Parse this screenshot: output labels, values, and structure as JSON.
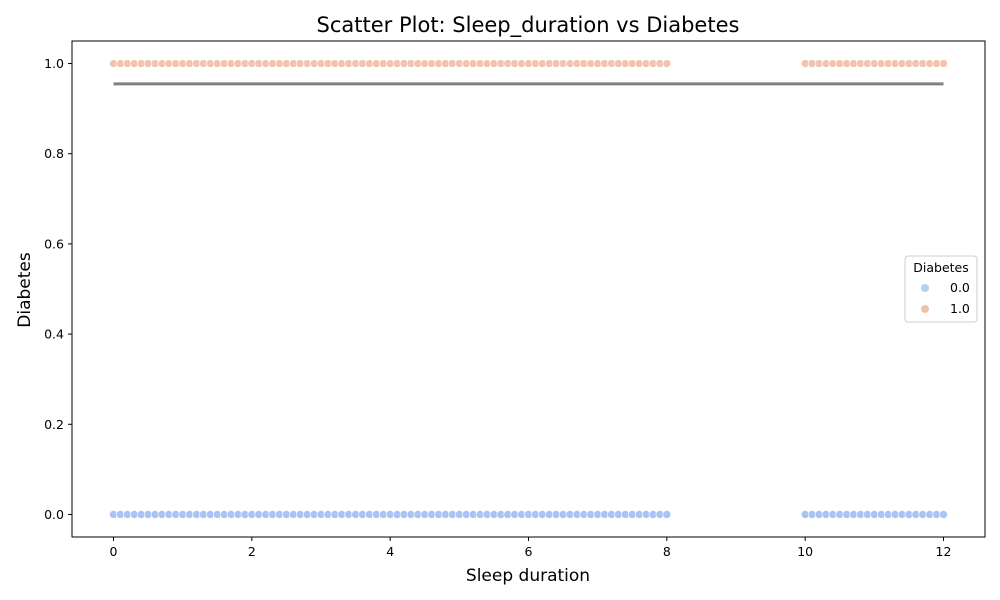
{
  "chart_data": {
    "type": "scatter",
    "title": "Scatter Plot: Sleep_duration vs Diabetes",
    "xlabel": "Sleep duration",
    "ylabel": "Diabetes",
    "xlim": [
      -0.6,
      12.6
    ],
    "ylim": [
      -0.05,
      1.05
    ],
    "x_ticks": [
      0,
      2,
      4,
      6,
      8,
      10,
      12
    ],
    "x_tick_labels": [
      "0",
      "2",
      "4",
      "6",
      "8",
      "10",
      "12"
    ],
    "y_ticks": [
      0.0,
      0.2,
      0.4,
      0.6,
      0.8,
      1.0
    ],
    "y_tick_labels": [
      "0.0",
      "0.2",
      "0.4",
      "0.6",
      "0.8",
      "1.0"
    ],
    "grid": false,
    "legend": {
      "title": "Diabetes",
      "placement": "center-right",
      "entries": [
        {
          "label": "0.0",
          "color": "#b3cdf3"
        },
        {
          "label": "1.0",
          "color": "#f0c1ac"
        }
      ]
    },
    "series": [
      {
        "name": "0.0",
        "y": 0.0,
        "color": "#a9c4f4",
        "x": [
          0.0,
          0.1,
          0.2,
          0.3,
          0.4,
          0.5,
          0.6,
          0.7,
          0.8,
          0.9,
          1.0,
          1.1,
          1.2,
          1.3,
          1.4,
          1.5,
          1.6,
          1.7,
          1.8,
          1.9,
          2.0,
          2.1,
          2.2,
          2.3,
          2.4,
          2.5,
          2.6,
          2.7,
          2.8,
          2.9,
          3.0,
          3.1,
          3.2,
          3.3,
          3.4,
          3.5,
          3.6,
          3.7,
          3.8,
          3.9,
          4.0,
          4.1,
          4.2,
          4.3,
          4.4,
          4.5,
          4.6,
          4.7,
          4.8,
          4.9,
          5.0,
          5.1,
          5.2,
          5.3,
          5.4,
          5.5,
          5.6,
          5.7,
          5.8,
          5.9,
          6.0,
          6.1,
          6.2,
          6.3,
          6.4,
          6.5,
          6.6,
          6.7,
          6.8,
          6.9,
          7.0,
          7.1,
          7.2,
          7.3,
          7.4,
          7.5,
          7.6,
          7.7,
          7.8,
          7.9,
          8.0,
          10.0,
          10.1,
          10.2,
          10.3,
          10.4,
          10.5,
          10.6,
          10.7,
          10.8,
          10.9,
          11.0,
          11.1,
          11.2,
          11.3,
          11.4,
          11.5,
          11.6,
          11.7,
          11.8,
          11.9,
          12.0
        ]
      },
      {
        "name": "1.0",
        "y": 1.0,
        "color": "#f2c4ae",
        "x": [
          0.0,
          0.1,
          0.2,
          0.3,
          0.4,
          0.5,
          0.6,
          0.7,
          0.8,
          0.9,
          1.0,
          1.1,
          1.2,
          1.3,
          1.4,
          1.5,
          1.6,
          1.7,
          1.8,
          1.9,
          2.0,
          2.1,
          2.2,
          2.3,
          2.4,
          2.5,
          2.6,
          2.7,
          2.8,
          2.9,
          3.0,
          3.1,
          3.2,
          3.3,
          3.4,
          3.5,
          3.6,
          3.7,
          3.8,
          3.9,
          4.0,
          4.1,
          4.2,
          4.3,
          4.4,
          4.5,
          4.6,
          4.7,
          4.8,
          4.9,
          5.0,
          5.1,
          5.2,
          5.3,
          5.4,
          5.5,
          5.6,
          5.7,
          5.8,
          5.9,
          6.0,
          6.1,
          6.2,
          6.3,
          6.4,
          6.5,
          6.6,
          6.7,
          6.8,
          6.9,
          7.0,
          7.1,
          7.2,
          7.3,
          7.4,
          7.5,
          7.6,
          7.7,
          7.8,
          7.9,
          8.0,
          10.0,
          10.1,
          10.2,
          10.3,
          10.4,
          10.5,
          10.6,
          10.7,
          10.8,
          10.9,
          11.0,
          11.1,
          11.2,
          11.3,
          11.4,
          11.5,
          11.6,
          11.7,
          11.8,
          11.9,
          12.0
        ]
      }
    ],
    "trend_line": {
      "x": [
        0,
        12
      ],
      "y": [
        0.955,
        0.955
      ],
      "color": "#808080"
    }
  }
}
